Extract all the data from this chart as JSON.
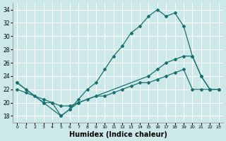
{
  "background_color": "#cce8e8",
  "grid_color": "#ffffff",
  "line_color": "#1a7070",
  "xlabel": "Humidex (Indice chaleur)",
  "xlim": [
    -0.5,
    23.5
  ],
  "ylim": [
    17,
    35
  ],
  "xticks": [
    0,
    1,
    2,
    3,
    4,
    5,
    6,
    7,
    8,
    9,
    10,
    11,
    12,
    13,
    14,
    15,
    16,
    17,
    18,
    19,
    20,
    21,
    22,
    23
  ],
  "yticks": [
    18,
    20,
    22,
    24,
    26,
    28,
    30,
    32,
    34
  ],
  "series": [
    {
      "x": [
        0,
        3,
        5,
        6,
        7,
        8,
        9,
        10,
        11,
        12,
        13,
        14,
        15,
        16,
        17,
        18,
        19,
        20,
        21,
        22,
        23
      ],
      "y": [
        23,
        20,
        18,
        19,
        20.5,
        22,
        23,
        25,
        27,
        28.5,
        30.5,
        31.5,
        33,
        34,
        33,
        33.5,
        31.5,
        27,
        24,
        22,
        22
      ]
    },
    {
      "x": [
        0,
        1,
        3,
        4,
        5,
        6,
        7,
        15,
        16,
        17,
        18,
        19,
        20,
        21,
        22
      ],
      "y": [
        23,
        22,
        20,
        20,
        18,
        19,
        20,
        24,
        25,
        26,
        26.5,
        27,
        27,
        24,
        22
      ]
    },
    {
      "x": [
        0,
        1,
        2,
        3,
        4,
        5,
        6,
        7,
        8,
        9,
        10,
        11,
        12,
        13,
        14,
        15,
        16,
        17,
        18,
        19,
        20,
        21,
        22,
        23
      ],
      "y": [
        22,
        21.5,
        21,
        20.5,
        20,
        19.5,
        19.5,
        20,
        20.5,
        21,
        21,
        21.5,
        22,
        22.5,
        23,
        23,
        23.5,
        24,
        24.5,
        25,
        22,
        22,
        22,
        22
      ]
    }
  ]
}
